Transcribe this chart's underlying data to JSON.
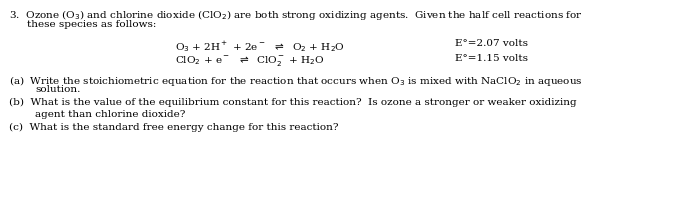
{
  "bg_color": "#ffffff",
  "fig_width": 7.0,
  "fig_height": 2.02,
  "dpi": 100,
  "fontsize": 7.5,
  "line1": "3.  Ozone (O$_3$) and chlorine dioxide (ClO$_2$) are both strong oxidizing agents.  Given the half cell reactions for",
  "line2": "these species as follows:",
  "eq1": "O$_3$ + 2H$^+$ + 2e$^-$  $\\rightleftharpoons$  O$_2$ + H$_2$O",
  "eq1_eo": "E°=2.07 volts",
  "eq2": "ClO$_2$ + e$^-$  $\\rightleftharpoons$  ClO$_2^-$ + H$_2$O",
  "eq2_eo": "E°=1.15 volts",
  "parta1": "(a)  Write the stoichiometric equation for the reaction that occurs when O$_3$ is mixed with NaClO$_2$ in aqueous",
  "parta2": "solution.",
  "partb1": "(b)  What is the value of the equilibrium constant for this reaction?  Is ozone a stronger or weaker oxidizing",
  "partb2": "agent than chlorine dioxide?",
  "partc": "(c)  What is the standard free energy change for this reaction?"
}
